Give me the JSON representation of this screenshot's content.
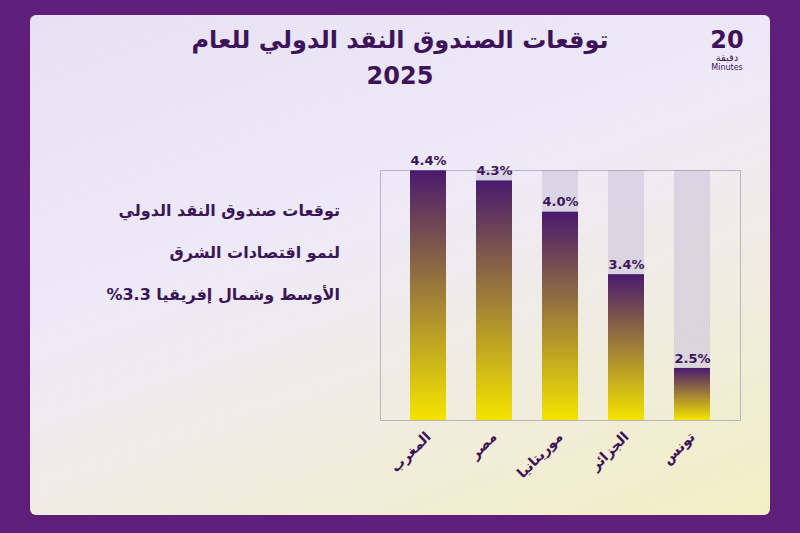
{
  "chart_data": {
    "type": "bar",
    "title": "توقعات الصندوق النقد الدولي للعام 2025",
    "annotations": [
      "توقعات صندوق النقد الدولي",
      "لنمو اقتصادات الشرق",
      "الأوسط وشمال إفريقيا 3.3%"
    ],
    "brand": [
      "20",
      "دقيقة",
      "Minutes"
    ],
    "categories": [
      "المغرب",
      "مصر",
      "موريتانيا",
      "الجزائر",
      "تونس"
    ],
    "values": [
      4.4,
      4.3,
      4.0,
      3.4,
      2.5
    ],
    "value_labels": [
      "4.4%",
      "4.3%",
      "4.0%",
      "3.4%",
      "2.5%"
    ],
    "data_labels": true,
    "color": "#4a1a6e",
    "ylim": [
      2,
      4.4
    ],
    "yticks": [],
    "grid": false,
    "tick_labels": "x"
  }
}
